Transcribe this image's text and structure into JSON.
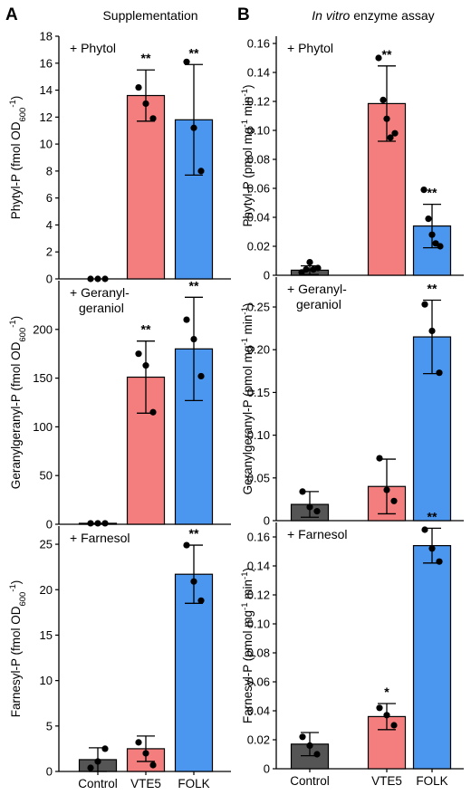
{
  "panels": [
    {
      "letter": "A",
      "heading": "Supplementation",
      "heading_italic": ""
    },
    {
      "letter": "B",
      "heading": " enzyme assay",
      "heading_italic": "In vitro"
    }
  ],
  "colors": {
    "Control": "#555555",
    "VTE5": "#f47e7e",
    "FOLK": "#4b97f0",
    "axis": "#000000",
    "dot": "#000000"
  },
  "chart_data": [
    {
      "type": "bar",
      "panel": "A",
      "row": 1,
      "annotation": "+ Phytol",
      "ylabel": {
        "base": "Phytyl-P (fmol OD",
        "sub": "600",
        "sup": "-1",
        "tail": ")"
      },
      "categories": [
        "Control",
        "VTE5",
        "FOLK"
      ],
      "values": [
        0,
        13.6,
        11.8
      ],
      "errors": [
        0,
        1.9,
        4.1
      ],
      "points": [
        [
          0,
          0,
          0
        ],
        [
          14.2,
          13.0,
          11.9
        ],
        [
          16.1,
          11.2,
          8.0
        ]
      ],
      "significance": [
        "",
        "**",
        "**"
      ],
      "ylim": [
        0,
        18
      ],
      "yticks": [
        0,
        2,
        4,
        6,
        8,
        10,
        12,
        14,
        16,
        18
      ],
      "show_x_labels": false,
      "grid": false
    },
    {
      "type": "bar",
      "panel": "A",
      "row": 2,
      "annotation": "+ Geranyl-\ngeraniol",
      "ylabel": {
        "base": "Geranylgeranyl-P (fmol OD",
        "sub": "600",
        "sup": "-1",
        "tail": ")"
      },
      "categories": [
        "Control",
        "VTE5",
        "FOLK"
      ],
      "values": [
        1,
        151,
        180
      ],
      "errors": [
        0,
        37,
        53
      ],
      "points": [
        [
          1,
          1,
          1
        ],
        [
          175,
          163,
          115
        ],
        [
          210,
          190,
          152
        ]
      ],
      "significance": [
        "",
        "**",
        "**"
      ],
      "ylim": [
        0,
        250
      ],
      "yticks": [
        0,
        50,
        100,
        150,
        200
      ],
      "show_x_labels": false,
      "grid": false
    },
    {
      "type": "bar",
      "panel": "A",
      "row": 3,
      "annotation": "+ Farnesol",
      "ylabel": {
        "base": "Farnesyl-P (fmol OD",
        "sub": "600",
        "sup": "-1",
        "tail": ")"
      },
      "categories": [
        "Control",
        "VTE5",
        "FOLK"
      ],
      "values": [
        1.3,
        2.5,
        21.7
      ],
      "errors": [
        1.3,
        1.4,
        3.2
      ],
      "points": [
        [
          0.4,
          1.1,
          2.5
        ],
        [
          3.2,
          2.0,
          0.7
        ],
        [
          24.9,
          20.9,
          18.8
        ]
      ],
      "significance": [
        "",
        "",
        "**"
      ],
      "ylim": [
        0,
        27
      ],
      "yticks": [
        0,
        5,
        10,
        15,
        20,
        25
      ],
      "show_x_labels": true,
      "grid": false
    },
    {
      "type": "bar",
      "panel": "B",
      "row": 1,
      "annotation": "+ Phytol",
      "ylabel": {
        "base": "Phytyl-P (pmol mg",
        "sub": "",
        "sup": "-1",
        "tail": " min",
        "sup2": "-1",
        "tail2": ")"
      },
      "categories": [
        "Control",
        "VTE5",
        "FOLK"
      ],
      "values": [
        0.0035,
        0.1185,
        0.034
      ],
      "errors": [
        0.003,
        0.026,
        0.015
      ],
      "points": [
        [
          0.002,
          0.004,
          0.009,
          0.004,
          0.005
        ],
        [
          0.15,
          0.121,
          0.108,
          0.095,
          0.098
        ],
        [
          0.059,
          0.039,
          0.028,
          0.022,
          0.02
        ]
      ],
      "significance": [
        "",
        "**",
        "**"
      ],
      "ylim": [
        0,
        0.165
      ],
      "yticks": [
        0,
        0.02,
        0.04,
        0.06,
        0.08,
        0.1,
        0.12,
        0.14,
        0.16
      ],
      "show_x_labels": false,
      "grid": false
    },
    {
      "type": "bar",
      "panel": "B",
      "row": 2,
      "annotation": "+ Geranyl-\ngeraniol",
      "ylabel": {
        "base": "Geranylgeranyl-P (pmol mg",
        "sub": "",
        "sup": "-1",
        "tail": " min",
        "sup2": "-1",
        "tail2": ")"
      },
      "categories": [
        "Control",
        "VTE5",
        "FOLK"
      ],
      "values": [
        0.019,
        0.04,
        0.215
      ],
      "errors": [
        0.015,
        0.032,
        0.043
      ],
      "points": [
        [
          0.034,
          0.016,
          0.011
        ],
        [
          0.073,
          0.036,
          0.023
        ],
        [
          0.253,
          0.222,
          0.173
        ]
      ],
      "significance": [
        "",
        "",
        "**"
      ],
      "ylim": [
        0,
        0.285
      ],
      "yticks": [
        0,
        0.05,
        0.1,
        0.15,
        0.2,
        0.25
      ],
      "show_x_labels": false,
      "grid": false
    },
    {
      "type": "bar",
      "panel": "B",
      "row": 3,
      "annotation": "+ Farnesol",
      "ylabel": {
        "base": "Farnesyl-P (pmol mg",
        "sub": "",
        "sup": "-1",
        "tail": " min",
        "sup2": "-1",
        "tail2": ")"
      },
      "categories": [
        "Control",
        "VTE5",
        "FOLK"
      ],
      "values": [
        0.017,
        0.036,
        0.154
      ],
      "errors": [
        0.008,
        0.009,
        0.012
      ],
      "points": [
        [
          0.022,
          0.016,
          0.01
        ],
        [
          0.042,
          0.037,
          0.03
        ],
        [
          0.165,
          0.152,
          0.143
        ]
      ],
      "significance": [
        "",
        "*",
        "**"
      ],
      "ylim": [
        0,
        0.17
      ],
      "yticks": [
        0,
        0.02,
        0.04,
        0.06,
        0.08,
        0.1,
        0.12,
        0.14,
        0.16
      ],
      "show_x_labels": true,
      "grid": false
    }
  ]
}
